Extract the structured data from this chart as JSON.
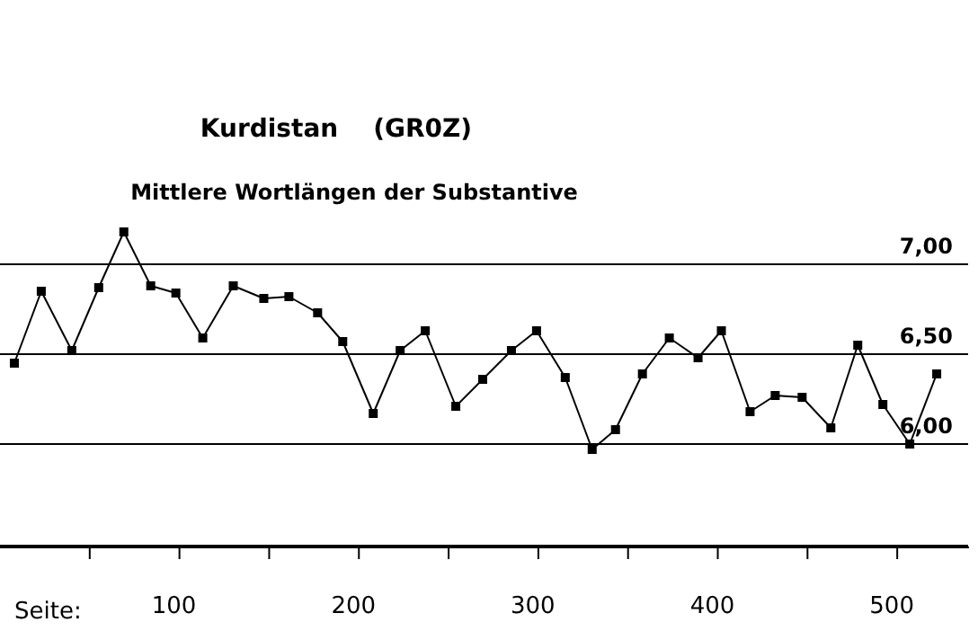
{
  "chart_data": {
    "type": "line",
    "title": "Kurdistan    (GR0Z)",
    "subtitle": "Mittlere Wortlängen der Substantive",
    "xlabel": "Seite:",
    "x": [
      8,
      23,
      40,
      55,
      69,
      84,
      98,
      113,
      130,
      147,
      161,
      177,
      191,
      208,
      223,
      237,
      254,
      269,
      285,
      299,
      315,
      330,
      343,
      358,
      373,
      389,
      402,
      418,
      432,
      447,
      463,
      478,
      492,
      507,
      522
    ],
    "series": [
      {
        "color": "#000000",
        "values": [
          6.45,
          6.85,
          6.52,
          6.87,
          7.18,
          6.88,
          6.84,
          6.59,
          6.88,
          6.81,
          6.82,
          6.73,
          6.57,
          6.17,
          6.52,
          6.63,
          6.21,
          6.36,
          6.52,
          6.63,
          6.37,
          5.97,
          6.08,
          6.39,
          6.59,
          6.48,
          6.63,
          6.18,
          6.27,
          6.26,
          6.09,
          6.55,
          6.22,
          6.0,
          6.39
        ]
      }
    ],
    "xlim": [
      0,
      540
    ],
    "xticks": [
      {
        "value": 50,
        "label": null
      },
      100,
      {
        "value": 150,
        "label": null
      },
      200,
      {
        "value": 250,
        "label": null
      },
      300,
      {
        "value": 350,
        "label": null
      },
      400,
      {
        "value": 450,
        "label": null
      },
      500
    ],
    "ylim": [
      5.43,
      7.3
    ],
    "yticks": [
      {
        "value": 6,
        "label": "6,00"
      },
      {
        "value": 6.5,
        "label": "6,50"
      },
      {
        "value": 7,
        "label": "7,00"
      }
    ],
    "grid": "y",
    "legend": false,
    "marker": "square",
    "line_style": "solid"
  }
}
